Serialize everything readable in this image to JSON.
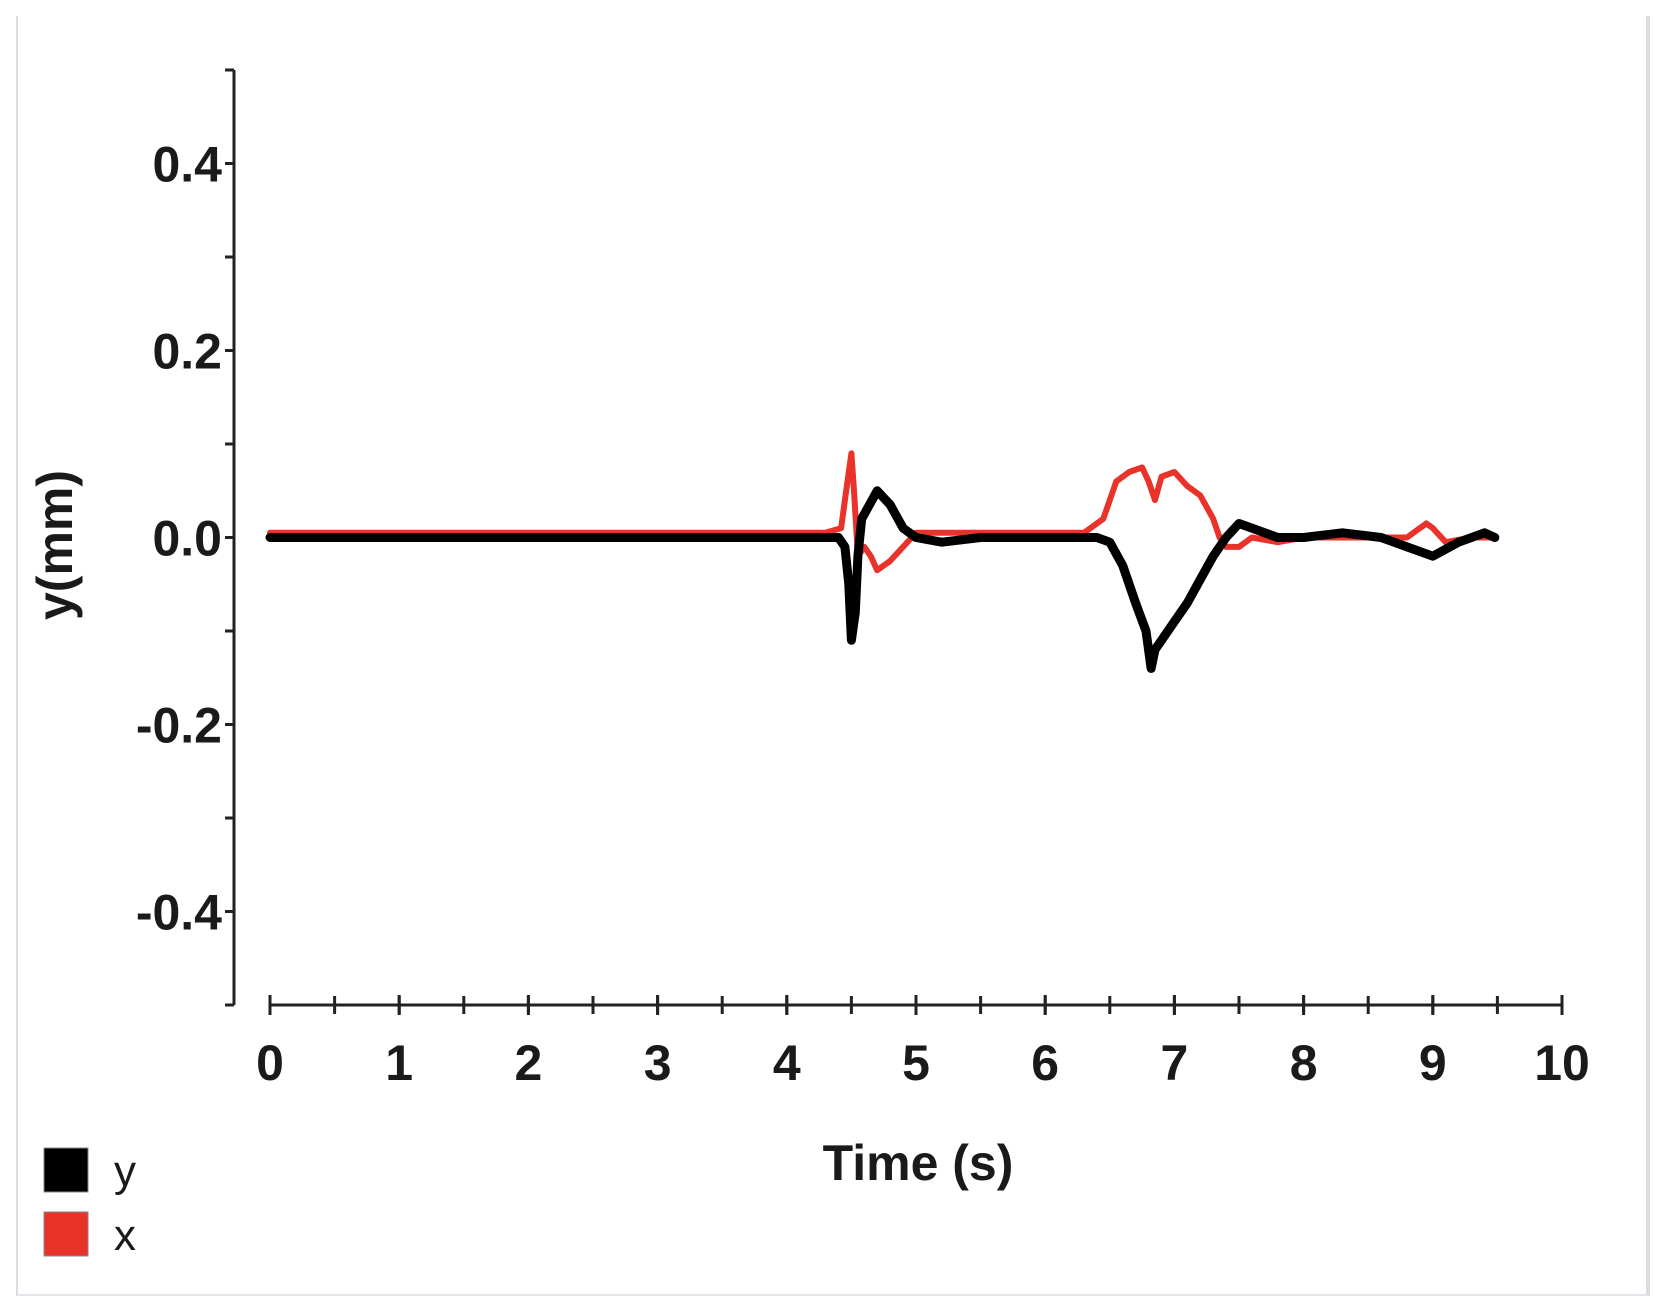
{
  "chart_data": {
    "type": "line",
    "title": "",
    "xlabel": "Time (s)",
    "ylabel": "y(mm)",
    "xlim": [
      0,
      10
    ],
    "ylim": [
      -0.5,
      0.5
    ],
    "x_ticks": [
      0,
      1,
      2,
      3,
      4,
      5,
      6,
      7,
      8,
      9,
      10
    ],
    "x_tick_labels": [
      "0",
      "1",
      "2",
      "3",
      "4",
      "5",
      "6",
      "7",
      "8",
      "9",
      "10"
    ],
    "y_ticks": [
      0.4,
      0.2,
      0.0,
      -0.2,
      -0.4
    ],
    "y_tick_labels": [
      "0.4",
      "0.2",
      "0.0",
      "-0.2",
      "-0.4"
    ],
    "grid": false,
    "legend_position": "bottom-left",
    "series": [
      {
        "name": "y",
        "color": "#000000",
        "x": [
          0,
          0.5,
          1,
          1.5,
          2,
          2.5,
          3,
          3.5,
          4,
          4.3,
          4.4,
          4.45,
          4.48,
          4.5,
          4.53,
          4.55,
          4.58,
          4.62,
          4.7,
          4.8,
          4.9,
          5.0,
          5.2,
          5.5,
          6.0,
          6.4,
          6.5,
          6.6,
          6.7,
          6.78,
          6.82,
          6.85,
          6.9,
          7.0,
          7.1,
          7.2,
          7.3,
          7.4,
          7.5,
          7.6,
          7.8,
          8.0,
          8.3,
          8.6,
          8.8,
          9.0,
          9.2,
          9.4,
          9.48
        ],
        "y": [
          0.0,
          0.0,
          0.0,
          0.0,
          0.0,
          0.0,
          0.0,
          0.0,
          0.0,
          0.0,
          0.0,
          -0.01,
          -0.05,
          -0.11,
          -0.08,
          -0.02,
          0.02,
          0.03,
          0.05,
          0.035,
          0.01,
          0.0,
          -0.005,
          0.0,
          0.0,
          0.0,
          -0.005,
          -0.03,
          -0.07,
          -0.1,
          -0.14,
          -0.12,
          -0.11,
          -0.09,
          -0.07,
          -0.045,
          -0.02,
          0.0,
          0.015,
          0.01,
          0.0,
          0.0,
          0.005,
          0.0,
          -0.01,
          -0.02,
          -0.005,
          0.005,
          0.0
        ]
      },
      {
        "name": "x",
        "color": "#e8322a",
        "x": [
          0,
          0.5,
          1,
          1.5,
          2,
          2.5,
          3,
          3.5,
          4,
          4.3,
          4.42,
          4.46,
          4.5,
          4.52,
          4.55,
          4.6,
          4.65,
          4.7,
          4.8,
          4.9,
          5.0,
          5.2,
          5.5,
          6.0,
          6.3,
          6.45,
          6.55,
          6.65,
          6.75,
          6.8,
          6.85,
          6.9,
          7.0,
          7.1,
          7.2,
          7.3,
          7.35,
          7.4,
          7.5,
          7.6,
          7.8,
          8.0,
          8.3,
          8.6,
          8.8,
          8.9,
          8.95,
          9.0,
          9.1,
          9.3,
          9.48
        ],
        "y": [
          0.005,
          0.005,
          0.005,
          0.005,
          0.005,
          0.005,
          0.005,
          0.005,
          0.005,
          0.005,
          0.01,
          0.05,
          0.09,
          0.05,
          -0.02,
          -0.01,
          -0.02,
          -0.035,
          -0.025,
          -0.01,
          0.005,
          0.005,
          0.005,
          0.005,
          0.005,
          0.02,
          0.06,
          0.07,
          0.075,
          0.06,
          0.04,
          0.065,
          0.07,
          0.055,
          0.045,
          0.02,
          0.0,
          -0.01,
          -0.01,
          0.0,
          -0.005,
          0.0,
          0.0,
          0.0,
          0.0,
          0.01,
          0.015,
          0.01,
          -0.005,
          0.0,
          0.0
        ]
      }
    ]
  }
}
